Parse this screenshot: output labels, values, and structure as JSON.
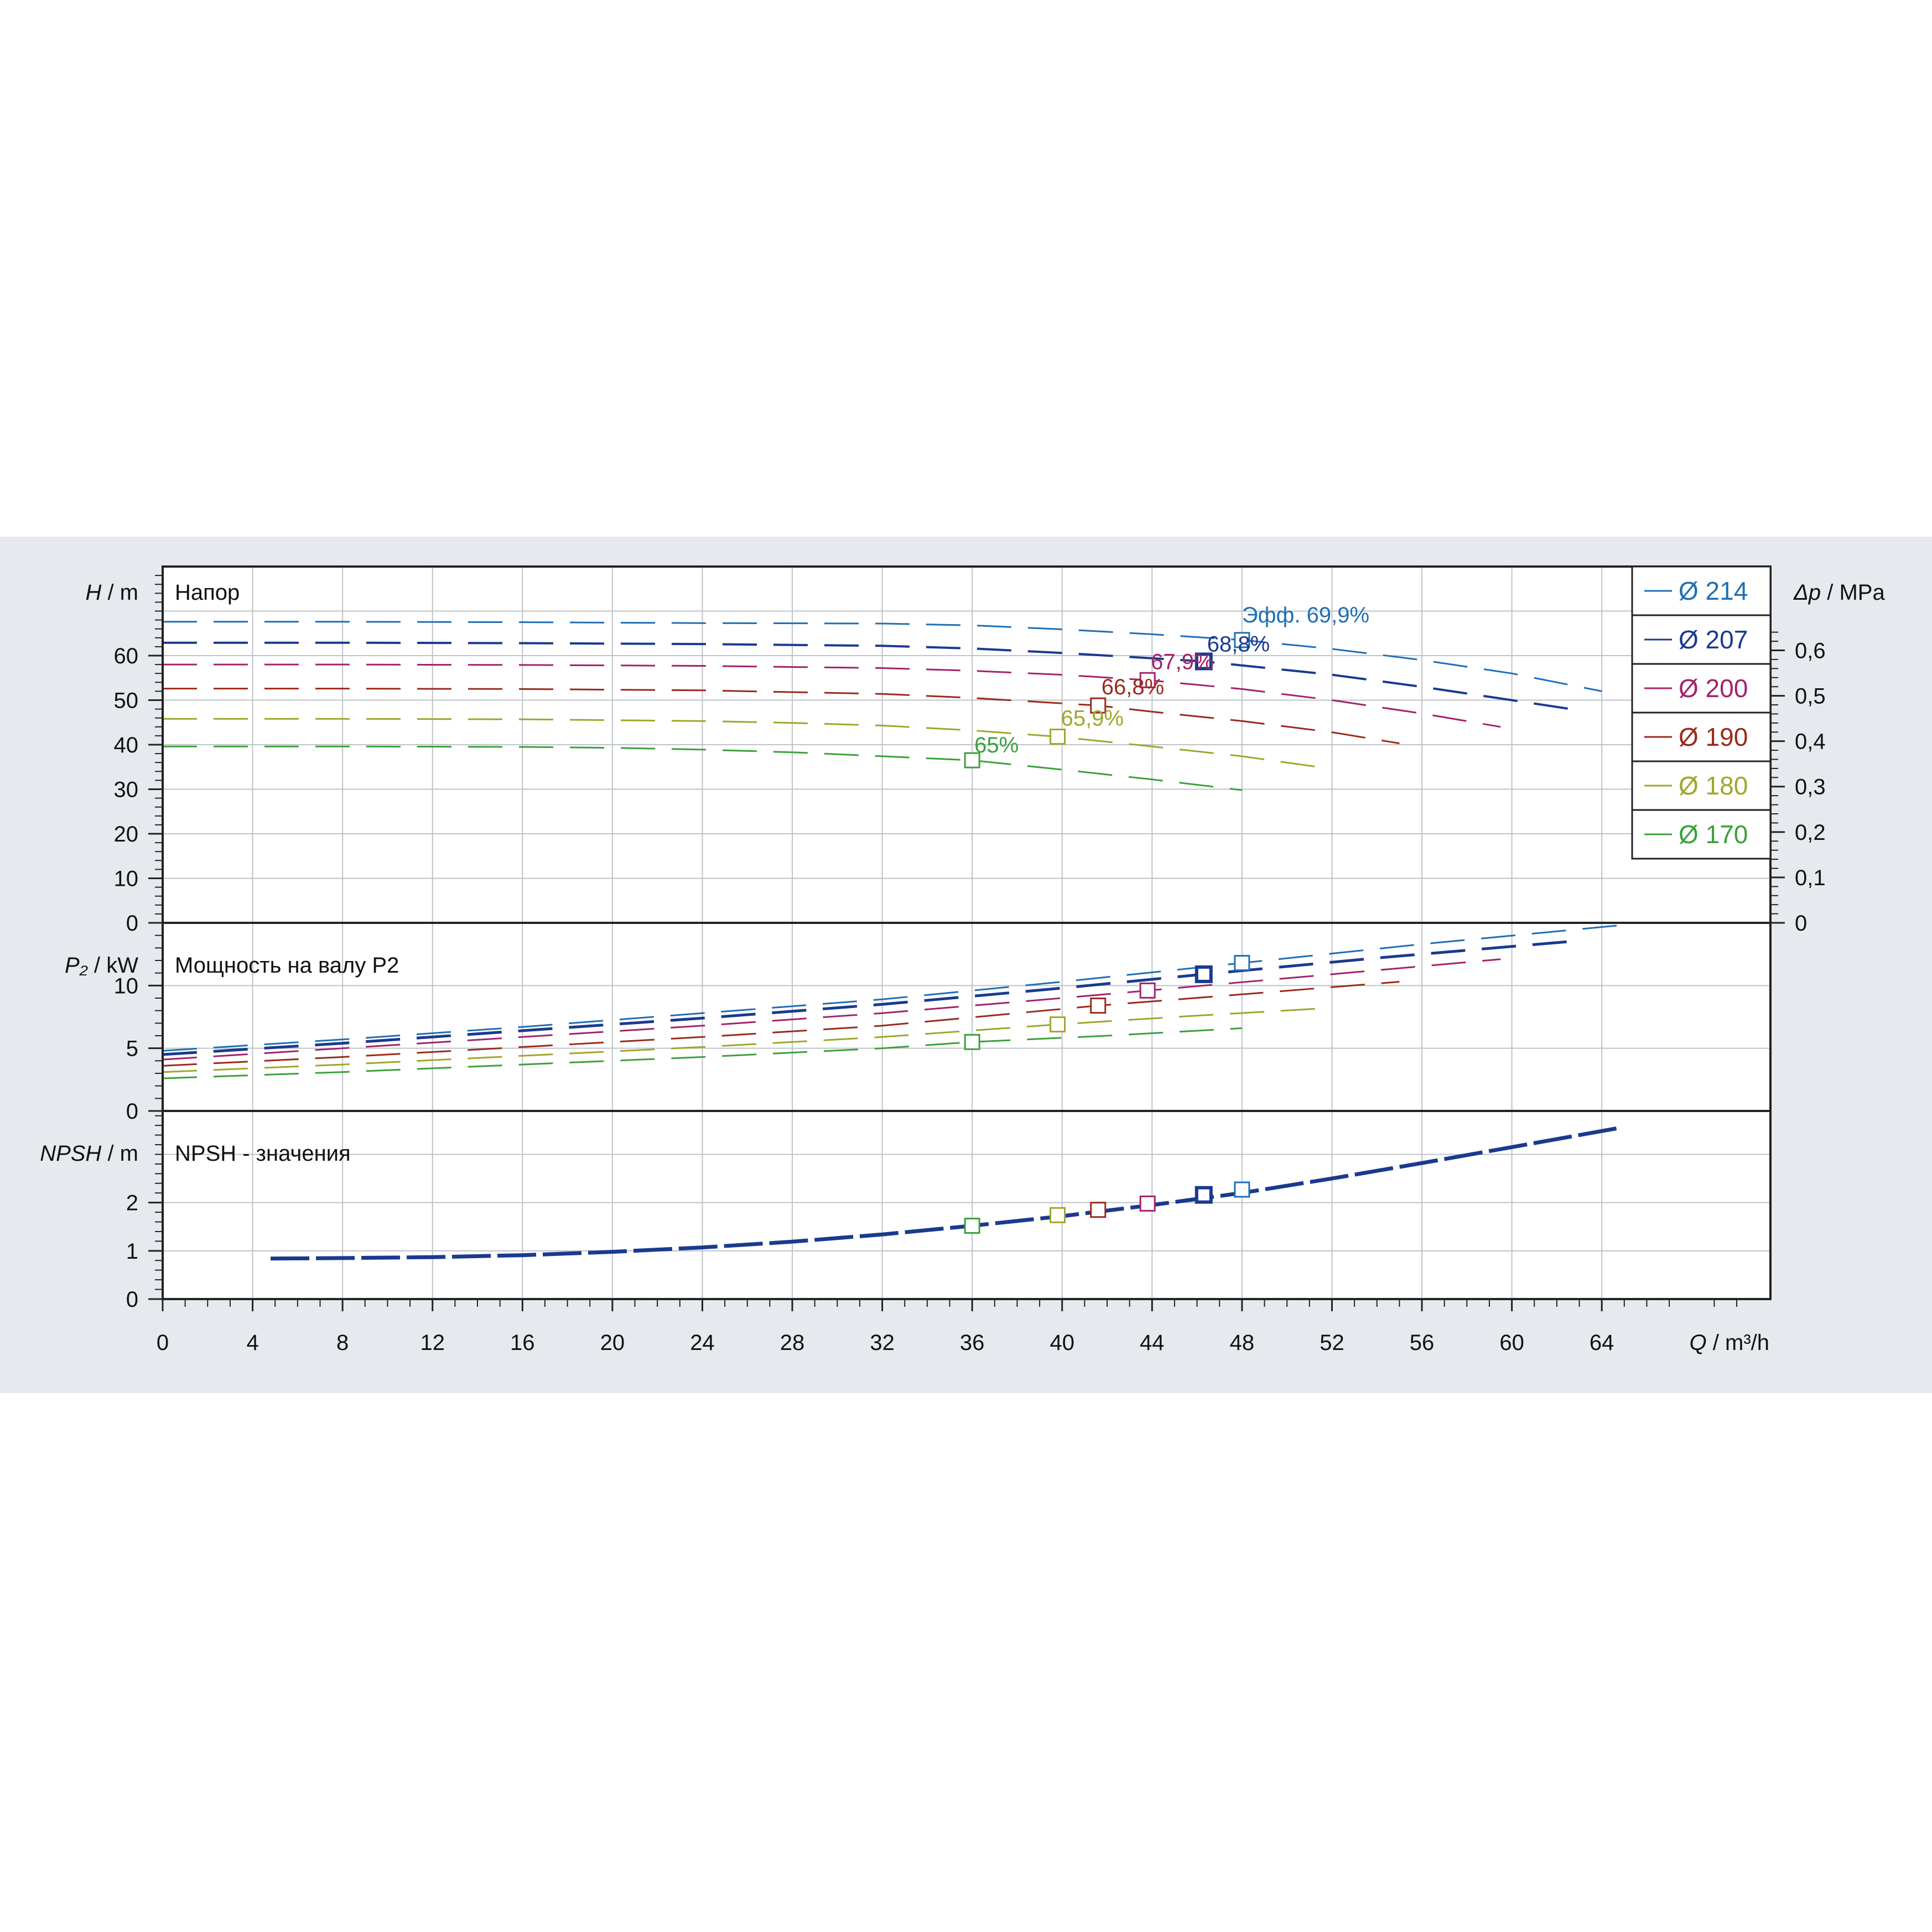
{
  "chart_data": [
    {
      "type": "line",
      "panel": "head",
      "title": "Напор",
      "ylabel": "H / m",
      "ylabel_var": "H",
      "ylabel_unit": "m",
      "y2label": "Δp / MPa",
      "y2label_var": "Δp",
      "y2label_unit": "MPa",
      "xlim": [
        0,
        71.5
      ],
      "ylim": [
        0,
        80
      ],
      "y_ticks": [
        "0",
        "10",
        "20",
        "30",
        "40",
        "50",
        "60"
      ],
      "y2_ticks": [
        "0",
        "0,1",
        "0,2",
        "0,3",
        "0,4",
        "0,5",
        "0,6"
      ],
      "grid": true,
      "legend": "top-right",
      "annotation_prefix": "Эфф.",
      "series": [
        {
          "name": "Ø 214",
          "color": "#1f6fb5",
          "bep": [
            48,
            63.5
          ],
          "bep_label": "69,9%",
          "x": [
            0,
            8,
            16,
            24,
            32,
            36,
            40,
            44,
            48,
            52,
            56,
            60,
            64
          ],
          "y": [
            67.6,
            67.6,
            67.5,
            67.3,
            67.2,
            66.8,
            65.9,
            64.8,
            63.5,
            61.5,
            59.0,
            56.0,
            52.0
          ]
        },
        {
          "name": "Ø 207",
          "color": "#1a3a8f",
          "bep": [
            46.3,
            58.7
          ],
          "bep_label": "68,8%",
          "x": [
            0,
            8,
            16,
            24,
            32,
            36,
            40,
            44,
            46.3,
            48,
            52,
            56,
            60,
            62.5
          ],
          "y": [
            62.9,
            62.9,
            62.8,
            62.6,
            62.2,
            61.6,
            60.6,
            59.4,
            58.7,
            57.8,
            55.7,
            53.0,
            50.0,
            48.1
          ]
        },
        {
          "name": "Ø 200",
          "color": "#a3226b",
          "bep": [
            43.8,
            54.5
          ],
          "bep_label": "67,9%",
          "x": [
            0,
            8,
            16,
            24,
            32,
            36,
            40,
            43.8,
            48,
            52,
            56,
            59.5
          ],
          "y": [
            58.0,
            58.0,
            57.9,
            57.7,
            57.2,
            56.6,
            55.7,
            54.5,
            52.5,
            50.0,
            47.0,
            44.0
          ]
        },
        {
          "name": "Ø 190",
          "color": "#9a2a1c",
          "bep": [
            41.6,
            48.8
          ],
          "bep_label": "66,8%",
          "x": [
            0,
            8,
            16,
            24,
            32,
            36,
            41.6,
            44,
            48,
            52,
            55
          ],
          "y": [
            52.6,
            52.6,
            52.5,
            52.2,
            51.4,
            50.5,
            48.8,
            47.4,
            45.3,
            42.8,
            40.3
          ]
        },
        {
          "name": "Ø 180",
          "color": "#a0a62a",
          "bep": [
            39.8,
            41.8
          ],
          "bep_label": "65,9%",
          "x": [
            0,
            8,
            16,
            24,
            28,
            32,
            36,
            39.8,
            44,
            48,
            51.8
          ],
          "y": [
            45.8,
            45.8,
            45.7,
            45.3,
            44.9,
            44.3,
            43.2,
            41.8,
            39.6,
            37.4,
            34.7
          ]
        },
        {
          "name": "Ø 170",
          "color": "#3ca03c",
          "bep": [
            36,
            36.5
          ],
          "bep_label": "65%",
          "x": [
            0,
            8,
            16,
            20,
            24,
            28,
            32,
            36,
            40,
            44,
            48
          ],
          "y": [
            39.6,
            39.6,
            39.5,
            39.3,
            38.9,
            38.3,
            37.4,
            36.5,
            34.4,
            32.2,
            29.8
          ]
        }
      ]
    },
    {
      "type": "line",
      "panel": "power",
      "title": "Мощность на валу P2",
      "ylabel": "P₂ / kW",
      "ylabel_var": "P₂",
      "ylabel_unit": "kW",
      "ylim": [
        0,
        15
      ],
      "y_ticks": [
        "0",
        "5",
        "10"
      ],
      "grid": true,
      "series": [
        {
          "name": "Ø 214",
          "bep": [
            48,
            11.8
          ],
          "x": [
            0,
            8,
            16,
            24,
            32,
            40,
            48,
            56,
            64.8
          ],
          "y": [
            4.8,
            5.7,
            6.7,
            7.8,
            8.9,
            10.3,
            11.8,
            13.3,
            14.8
          ]
        },
        {
          "name": "Ø 207",
          "bep": [
            46.3,
            10.9
          ],
          "x": [
            0,
            8,
            16,
            24,
            32,
            40,
            46.3,
            54,
            62.5
          ],
          "y": [
            4.5,
            5.4,
            6.4,
            7.4,
            8.5,
            9.8,
            10.9,
            12.2,
            13.5
          ]
        },
        {
          "name": "Ø 200",
          "bep": [
            43.8,
            9.6
          ],
          "x": [
            0,
            8,
            16,
            24,
            32,
            40,
            43.8,
            52,
            59.5
          ],
          "y": [
            4.1,
            5.0,
            5.9,
            6.8,
            7.8,
            9.0,
            9.6,
            10.9,
            12.1
          ]
        },
        {
          "name": "Ø 190",
          "bep": [
            41.6,
            8.4
          ],
          "x": [
            0,
            8,
            16,
            24,
            32,
            41.6,
            48,
            55
          ],
          "y": [
            3.6,
            4.3,
            5.1,
            5.9,
            6.8,
            8.4,
            9.3,
            10.3
          ]
        },
        {
          "name": "Ø 180",
          "bep": [
            39.8,
            6.9
          ],
          "x": [
            0,
            8,
            16,
            24,
            32,
            39.8,
            46,
            51.8
          ],
          "y": [
            3.1,
            3.7,
            4.4,
            5.1,
            5.9,
            6.9,
            7.6,
            8.2
          ]
        },
        {
          "name": "Ø 170",
          "bep": [
            36,
            5.5
          ],
          "x": [
            0,
            8,
            16,
            24,
            32,
            36,
            42,
            48
          ],
          "y": [
            2.6,
            3.1,
            3.7,
            4.3,
            5.0,
            5.5,
            6.0,
            6.6
          ]
        }
      ]
    },
    {
      "type": "line",
      "panel": "npsh",
      "title": "NPSH - значения",
      "ylabel": "NPSH / m",
      "ylabel_var": "NPSH",
      "ylabel_unit": "m",
      "xlabel": "Q / m³/h",
      "xlabel_var": "Q",
      "xlabel_unit": "m³/h",
      "ylim": [
        0,
        3.9
      ],
      "y_ticks": [
        "0",
        "1",
        "2"
      ],
      "x_ticks": [
        "0",
        "4",
        "8",
        "12",
        "16",
        "20",
        "24",
        "28",
        "32",
        "36",
        "40",
        "44",
        "48",
        "52",
        "56",
        "60",
        "64"
      ],
      "grid": true,
      "series": [
        {
          "name": "NPSH",
          "x": [
            4.8,
            8,
            12,
            16,
            20,
            24,
            28,
            32,
            36,
            40,
            44,
            48,
            52,
            56,
            60,
            64.8
          ],
          "y": [
            0.84,
            0.85,
            0.87,
            0.91,
            0.98,
            1.07,
            1.19,
            1.34,
            1.52,
            1.72,
            1.95,
            2.2,
            2.5,
            2.82,
            3.15,
            3.55
          ]
        }
      ],
      "bep_points": [
        {
          "name": "Ø 214",
          "x": 48,
          "y": 2.27
        },
        {
          "name": "Ø 207",
          "x": 46.3,
          "y": 2.16
        },
        {
          "name": "Ø 200",
          "x": 43.8,
          "y": 1.98
        },
        {
          "name": "Ø 190",
          "x": 41.6,
          "y": 1.85
        },
        {
          "name": "Ø 180",
          "x": 39.8,
          "y": 1.74
        },
        {
          "name": "Ø 170",
          "x": 36,
          "y": 1.52
        }
      ]
    }
  ]
}
